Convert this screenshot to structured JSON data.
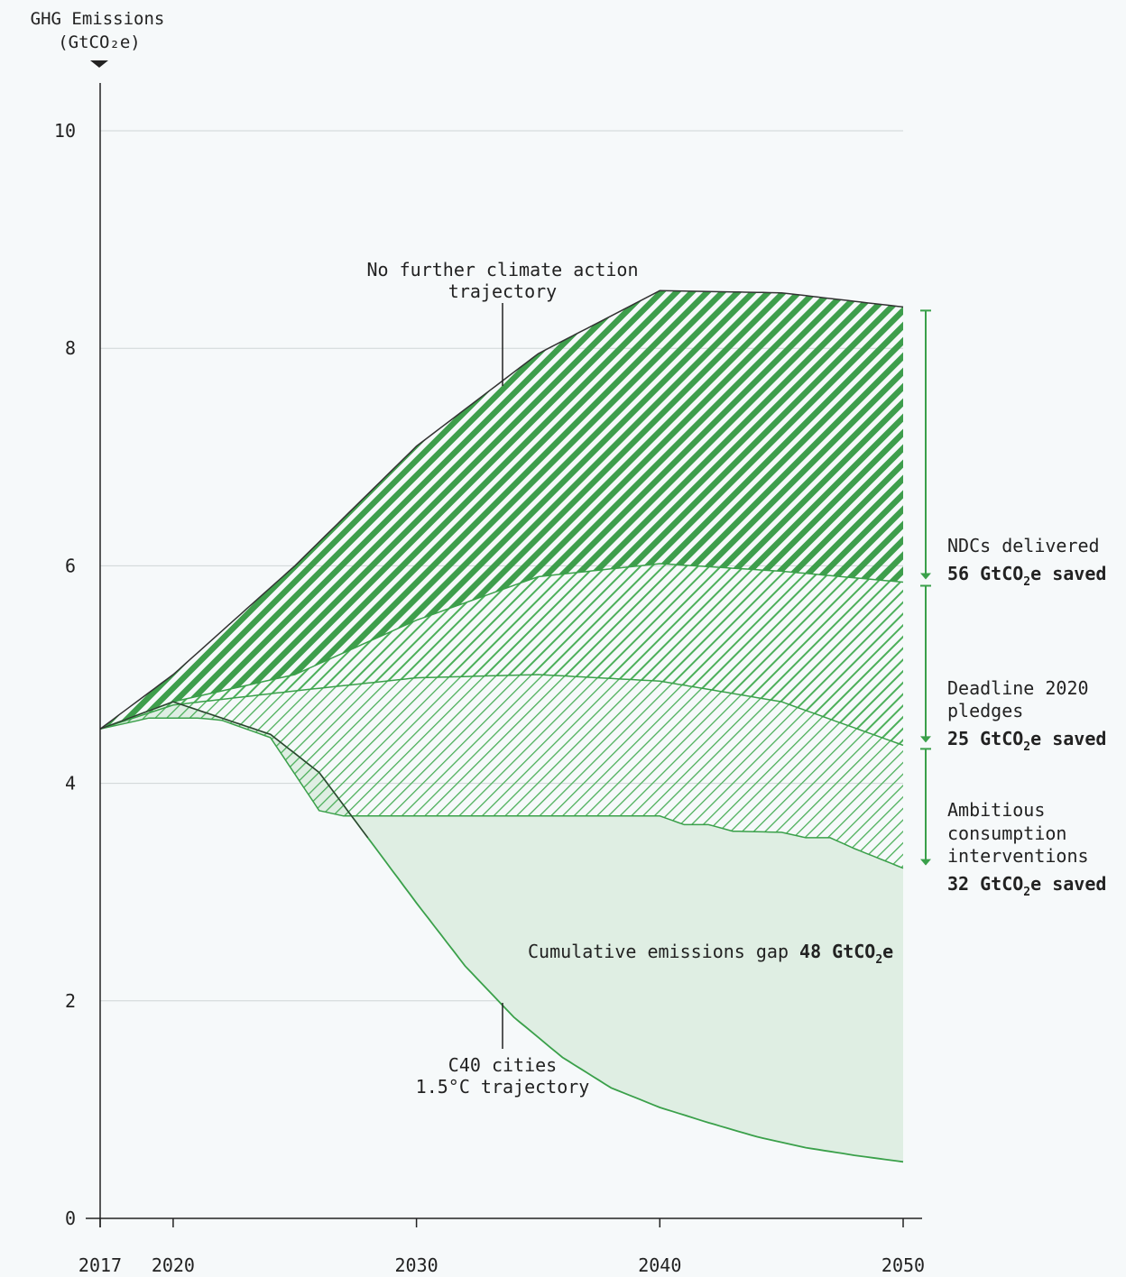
{
  "chart_data": {
    "type": "area",
    "y_axis_label_line1": "GHG Emissions",
    "y_axis_label_line2": "(GtCO₂e)",
    "xlim": [
      2017,
      2050
    ],
    "ylim": [
      0,
      10
    ],
    "x_ticks": [
      2017,
      2020,
      2030,
      2040,
      2050
    ],
    "y_ticks": [
      0,
      2,
      4,
      6,
      8,
      10
    ],
    "grid": "horizontal",
    "series": [
      {
        "name": "No further climate action trajectory",
        "x": [
          2017,
          2020,
          2025,
          2030,
          2035,
          2040,
          2045,
          2050
        ],
        "y": [
          4.5,
          5.0,
          6.0,
          7.1,
          7.95,
          8.53,
          8.51,
          8.38
        ]
      },
      {
        "name": "NDCs delivered",
        "x": [
          2017,
          2020,
          2025,
          2030,
          2035,
          2040,
          2045,
          2050
        ],
        "y": [
          4.5,
          4.75,
          5.0,
          5.5,
          5.9,
          6.02,
          5.95,
          5.85
        ]
      },
      {
        "name": "Deadline 2020 pledges",
        "x": [
          2017,
          2020,
          2025,
          2030,
          2035,
          2040,
          2045,
          2050
        ],
        "y": [
          4.5,
          4.72,
          4.85,
          4.97,
          5.0,
          4.94,
          4.75,
          4.35
        ]
      },
      {
        "name": "Ambitious consumption interventions",
        "x": [
          2017,
          2019,
          2021,
          2022,
          2024,
          2026,
          2027,
          2030,
          2035,
          2040,
          2041,
          2042,
          2043,
          2045,
          2046,
          2047,
          2048,
          2050
        ],
        "y": [
          4.5,
          4.6,
          4.6,
          4.58,
          4.42,
          3.75,
          3.7,
          3.7,
          3.7,
          3.7,
          3.62,
          3.62,
          3.56,
          3.55,
          3.5,
          3.5,
          3.4,
          3.22
        ]
      },
      {
        "name": "C40 cities 1.5°C trajectory",
        "x": [
          2017,
          2020,
          2022,
          2024,
          2026,
          2028,
          2030,
          2032,
          2034,
          2036,
          2038,
          2040,
          2042,
          2044,
          2046,
          2048,
          2050
        ],
        "y": [
          4.5,
          4.75,
          4.6,
          4.45,
          4.1,
          3.5,
          2.9,
          2.32,
          1.85,
          1.48,
          1.2,
          1.02,
          0.88,
          0.75,
          0.65,
          0.58,
          0.52
        ]
      }
    ],
    "annotations": {
      "bau_line1": "No further climate action",
      "bau_line2": "trajectory",
      "c40_line1": "C40 cities",
      "c40_line2": "1.5°C trajectory",
      "gap_text": "Cumulative emissions gap ",
      "gap_value": "48 GtCO",
      "gap_suffix": "e",
      "ndc_label": "NDCs delivered",
      "ndc_value": "56 GtCO",
      "ndc_suffix": "e saved",
      "pledge_label1": "Deadline 2020",
      "pledge_label2": "pledges",
      "pledge_value": "25 GtCO",
      "pledge_suffix": "e saved",
      "ambitious_label1": "Ambitious",
      "ambitious_label2": "consumption",
      "ambitious_label3": "interventions",
      "ambitious_value": "32 GtCO",
      "ambitious_suffix": "e saved",
      "subscript": "2"
    },
    "colors": {
      "line": "#3aa04a",
      "dark_hatch": "#3e9e4c",
      "light_hatch": "#4caf5a",
      "gap_fill": "#dfeee3",
      "axis": "#222222",
      "grid": "#cfd5d6"
    }
  }
}
